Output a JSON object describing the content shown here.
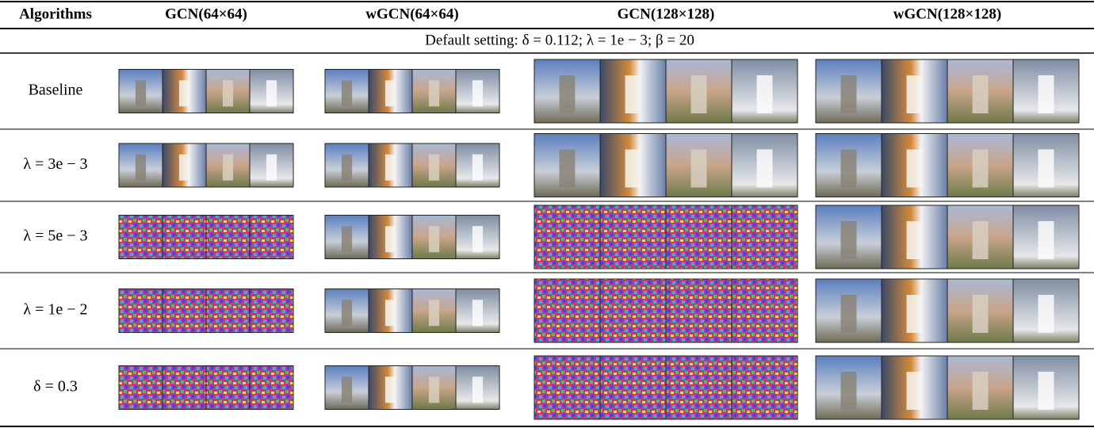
{
  "table": {
    "header": [
      "Algorithms",
      "GCN(64×64)",
      "wGCN(64×64)",
      "GCN(128×128)",
      "wGCN(128×128)"
    ],
    "setting": "Default setting:  δ = 0.112; λ = 1e − 3;  β = 20",
    "rows": [
      "Baseline",
      "λ = 3e − 3",
      "λ = 5e − 3",
      "λ = 1e − 2",
      "δ = 0.3"
    ]
  }
}
